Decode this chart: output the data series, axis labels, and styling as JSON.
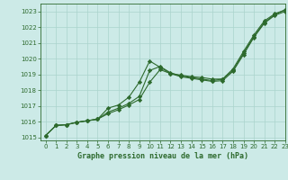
{
  "xlabel": "Graphe pression niveau de la mer (hPa)",
  "xlim": [
    -0.5,
    23
  ],
  "ylim": [
    1014.8,
    1023.5
  ],
  "yticks": [
    1015,
    1016,
    1017,
    1018,
    1019,
    1020,
    1021,
    1022,
    1023
  ],
  "xticks": [
    0,
    1,
    2,
    3,
    4,
    5,
    6,
    7,
    8,
    9,
    10,
    11,
    12,
    13,
    14,
    15,
    16,
    17,
    18,
    19,
    20,
    21,
    22,
    23
  ],
  "bg_color": "#cceae7",
  "grid_color": "#aad4cc",
  "line_color": "#2d6a2d",
  "series1_x": [
    0,
    1,
    2,
    3,
    4,
    5,
    6,
    7,
    8,
    9,
    10,
    11,
    12,
    13,
    14,
    15,
    16,
    17,
    18,
    19,
    20,
    21,
    22,
    23
  ],
  "series1_y": [
    1015.1,
    1015.75,
    1015.8,
    1015.95,
    1016.05,
    1016.15,
    1016.85,
    1017.05,
    1017.55,
    1018.5,
    1019.85,
    1019.45,
    1019.05,
    1018.95,
    1018.85,
    1018.8,
    1018.7,
    1018.7,
    1019.35,
    1020.45,
    1021.5,
    1022.4,
    1022.85,
    1023.1
  ],
  "series2_x": [
    0,
    1,
    2,
    3,
    4,
    5,
    6,
    7,
    8,
    9,
    10,
    11,
    12,
    13,
    14,
    15,
    16,
    17,
    18,
    19,
    20,
    21,
    22,
    23
  ],
  "series2_y": [
    1015.1,
    1015.75,
    1015.8,
    1015.95,
    1016.05,
    1016.15,
    1016.6,
    1016.85,
    1017.15,
    1017.6,
    1019.25,
    1019.5,
    1019.1,
    1018.9,
    1018.8,
    1018.7,
    1018.6,
    1018.7,
    1019.25,
    1020.35,
    1021.4,
    1022.3,
    1022.8,
    1023.1
  ],
  "series3_x": [
    0,
    1,
    2,
    3,
    4,
    5,
    6,
    7,
    8,
    9,
    10,
    11,
    12,
    13,
    14,
    15,
    16,
    17,
    18,
    19,
    20,
    21,
    22,
    23
  ],
  "series3_y": [
    1015.1,
    1015.75,
    1015.8,
    1015.95,
    1016.05,
    1016.15,
    1016.5,
    1016.75,
    1017.05,
    1017.4,
    1018.5,
    1019.3,
    1019.05,
    1018.85,
    1018.75,
    1018.65,
    1018.55,
    1018.6,
    1019.2,
    1020.25,
    1021.35,
    1022.25,
    1022.75,
    1023.0
  ],
  "marker": "D",
  "marker_size": 2.2,
  "line_width": 0.8,
  "tick_fontsize": 5.0,
  "label_fontsize": 6.0
}
